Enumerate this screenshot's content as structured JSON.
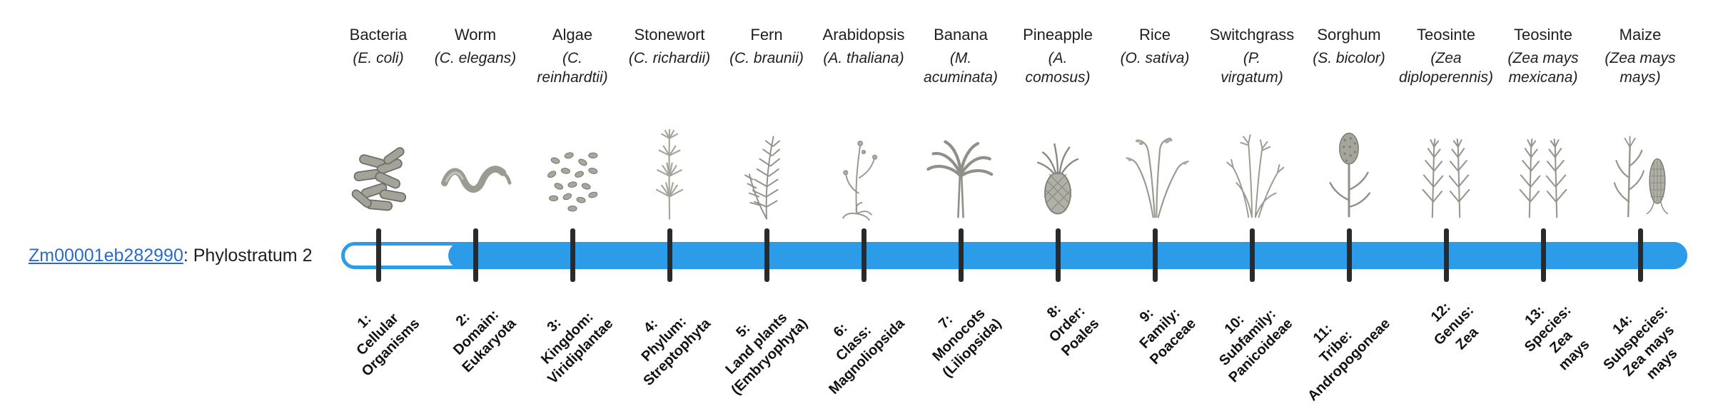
{
  "gene": {
    "id": "Zm00001eb282990",
    "suffix": ": Phylostratum 2"
  },
  "timeline": {
    "fill_starts_at_stratum": 2,
    "total_strata": 14
  },
  "colors": {
    "bar_blue": "#2D9CE8",
    "link_blue": "#2A6BC9",
    "tick_black": "#2A2A2A",
    "text_black": "#1F1F1F",
    "sketch_gray": "#96968D"
  },
  "strata": [
    {
      "index": 1,
      "common_name": "Bacteria",
      "scientific_name": "(E. coli)",
      "icon": "bacteria",
      "filled": false,
      "stage_label": "1:\nCellular\nOrganisms"
    },
    {
      "index": 2,
      "common_name": "Worm",
      "scientific_name": "(C. elegans)",
      "icon": "worm",
      "filled": true,
      "stage_label": "2:\nDomain:\nEukaryota"
    },
    {
      "index": 3,
      "common_name": "Algae",
      "scientific_name": "(C.\nreinhardtii)",
      "icon": "algae",
      "filled": true,
      "stage_label": "3:\nKingdom:\nViridiplantae"
    },
    {
      "index": 4,
      "common_name": "Stonewort",
      "scientific_name": "(C. richardii)",
      "icon": "stonewort",
      "filled": true,
      "stage_label": "4:\nPhylum:\nStreptophyta"
    },
    {
      "index": 5,
      "common_name": "Fern",
      "scientific_name": "(C. braunii)",
      "icon": "fern",
      "filled": true,
      "stage_label": "5:\nLand plants\n(Embryophyta)"
    },
    {
      "index": 6,
      "common_name": "Arabidopsis",
      "scientific_name": "(A. thaliana)",
      "icon": "arabidopsis",
      "filled": true,
      "stage_label": "6:\nClass:\nMagnoliopsida"
    },
    {
      "index": 7,
      "common_name": "Banana",
      "scientific_name": "(M.\nacuminata)",
      "icon": "banana",
      "filled": true,
      "stage_label": "7:\nMonocots\n(Liliopsida)"
    },
    {
      "index": 8,
      "common_name": "Pineapple",
      "scientific_name": "(A.\ncomosus)",
      "icon": "pineapple",
      "filled": true,
      "stage_label": "8:\nOrder:\nPoales"
    },
    {
      "index": 9,
      "common_name": "Rice",
      "scientific_name": "(O. sativa)",
      "icon": "rice",
      "filled": true,
      "stage_label": "9:\nFamily:\nPoaceae"
    },
    {
      "index": 10,
      "common_name": "Switchgrass",
      "scientific_name": "(P.\nvirgatum)",
      "icon": "switchgrass",
      "filled": true,
      "stage_label": "10:\nSubfamily:\nPanicoideae"
    },
    {
      "index": 11,
      "common_name": "Sorghum",
      "scientific_name": "(S. bicolor)",
      "icon": "sorghum",
      "filled": true,
      "stage_label": "11:\nTribe:\nAndropogoneae"
    },
    {
      "index": 12,
      "common_name": "Teosinte",
      "scientific_name": "(Zea\ndiploperennis)",
      "icon": "teosinte",
      "filled": true,
      "stage_label": "12:\nGenus:\nZea"
    },
    {
      "index": 13,
      "common_name": "Teosinte",
      "scientific_name": "(Zea mays\nmexicana)",
      "icon": "teosinte",
      "filled": true,
      "stage_label": "13:\nSpecies:\nZea\nmays"
    },
    {
      "index": 14,
      "common_name": "Maize",
      "scientific_name": "(Zea mays\nmays)",
      "icon": "maize",
      "filled": true,
      "stage_label": "14:\nSubspecies:\nZea mays\nmays"
    }
  ]
}
